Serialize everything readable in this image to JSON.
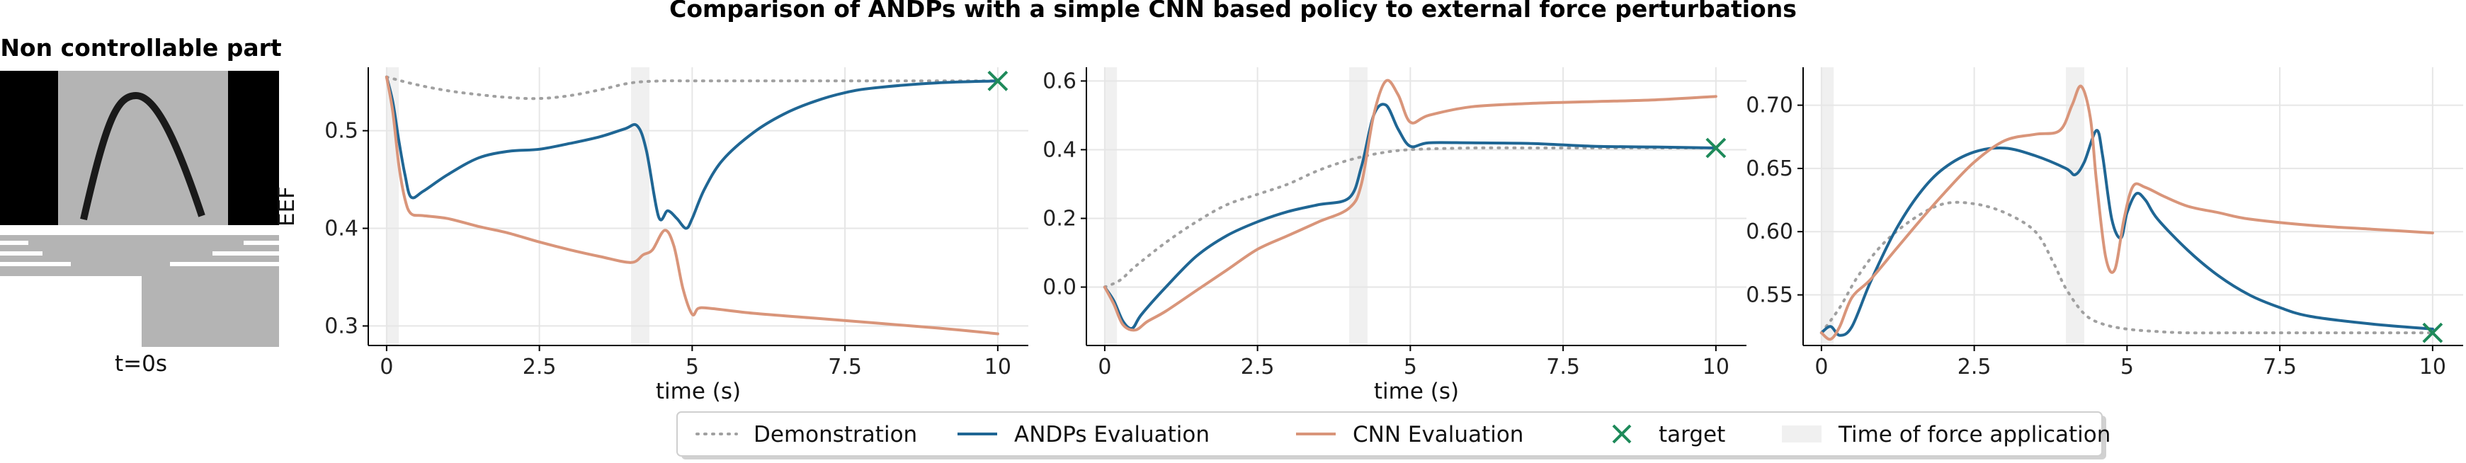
{
  "figure": {
    "title": "Comparison of ANDPs with a simple CNN based policy to external force perturbations",
    "image_panel": {
      "title": "Non controllable part",
      "caption": "t=0s"
    }
  },
  "colors": {
    "demonstration": "#a0a0a0",
    "andps": "#1f6694",
    "cnn": "#d9957a",
    "target": "#1e8a5a",
    "force": "#f0f0f0",
    "grid": "#e6e6e6"
  },
  "legend": {
    "placement": "bottom-center",
    "items": [
      {
        "key": "demonstration",
        "label": "Demonstration"
      },
      {
        "key": "andps",
        "label": "ANDPs Evaluation"
      },
      {
        "key": "cnn",
        "label": "CNN Evaluation"
      },
      {
        "key": "target",
        "label": "target"
      },
      {
        "key": "force",
        "label": "Time of force application"
      }
    ]
  },
  "chart_data": [
    {
      "type": "line",
      "xlabel": "time (s)",
      "ylabel": "EEF",
      "xlim": [
        -0.3,
        10.5
      ],
      "ylim": [
        0.28,
        0.565
      ],
      "xticks": [
        0,
        2.5,
        5,
        7.5,
        10
      ],
      "xtick_labels": [
        "0",
        "2.5",
        "5",
        "7.5",
        "10"
      ],
      "yticks": [
        0.3,
        0.4,
        0.5
      ],
      "ytick_labels": [
        "0.3",
        "0.4",
        "0.5"
      ],
      "grid": true,
      "force_intervals": [
        [
          0,
          0.2
        ],
        [
          4.0,
          4.3
        ]
      ],
      "target": {
        "x": 10,
        "y": 0.551
      },
      "series": [
        {
          "key": "demonstration",
          "style": "dotted",
          "x": [
            0,
            0.5,
            1,
            1.5,
            2,
            2.5,
            3,
            3.5,
            4,
            4.5,
            5,
            6,
            7,
            8,
            9,
            10
          ],
          "y": [
            0.555,
            0.547,
            0.541,
            0.537,
            0.534,
            0.533,
            0.536,
            0.542,
            0.549,
            0.551,
            0.551,
            0.551,
            0.551,
            0.551,
            0.551,
            0.551
          ]
        },
        {
          "key": "andps",
          "style": "solid",
          "x": [
            0,
            0.1,
            0.2,
            0.3,
            0.4,
            0.6,
            1,
            1.5,
            2,
            2.5,
            3,
            3.5,
            3.9,
            4.1,
            4.25,
            4.45,
            4.6,
            4.75,
            4.9,
            5,
            5.2,
            5.5,
            6,
            6.5,
            7,
            7.5,
            8,
            9,
            10
          ],
          "y": [
            0.555,
            0.53,
            0.49,
            0.455,
            0.432,
            0.438,
            0.455,
            0.472,
            0.479,
            0.481,
            0.487,
            0.494,
            0.502,
            0.505,
            0.48,
            0.412,
            0.418,
            0.41,
            0.4,
            0.41,
            0.44,
            0.47,
            0.498,
            0.517,
            0.53,
            0.539,
            0.544,
            0.549,
            0.551
          ]
        },
        {
          "key": "cnn",
          "style": "solid",
          "x": [
            0,
            0.1,
            0.2,
            0.3,
            0.4,
            0.6,
            1,
            1.5,
            2,
            2.5,
            3,
            3.5,
            4,
            4.2,
            4.35,
            4.55,
            4.7,
            4.85,
            5,
            5.1,
            5.3,
            6,
            7,
            8,
            9,
            10
          ],
          "y": [
            0.555,
            0.52,
            0.465,
            0.43,
            0.415,
            0.413,
            0.41,
            0.402,
            0.395,
            0.386,
            0.378,
            0.371,
            0.365,
            0.373,
            0.378,
            0.398,
            0.382,
            0.338,
            0.312,
            0.318,
            0.318,
            0.313,
            0.308,
            0.303,
            0.298,
            0.292
          ]
        }
      ]
    },
    {
      "type": "line",
      "xlabel": "time (s)",
      "ylabel": "",
      "xlim": [
        -0.3,
        10.5
      ],
      "ylim": [
        -0.17,
        0.64
      ],
      "xticks": [
        0,
        2.5,
        5,
        7.5,
        10
      ],
      "xtick_labels": [
        "0",
        "2.5",
        "5",
        "7.5",
        "10"
      ],
      "yticks": [
        0.0,
        0.2,
        0.4,
        0.6
      ],
      "ytick_labels": [
        "0.0",
        "0.2",
        "0.4",
        "0.6"
      ],
      "grid": true,
      "force_intervals": [
        [
          0,
          0.2
        ],
        [
          4.0,
          4.3
        ]
      ],
      "target": {
        "x": 10,
        "y": 0.405
      },
      "series": [
        {
          "key": "demonstration",
          "style": "dotted",
          "x": [
            0,
            0.25,
            0.5,
            1,
            1.5,
            2,
            2.5,
            3,
            3.5,
            4,
            4.5,
            5,
            6,
            7,
            8,
            9,
            10
          ],
          "y": [
            0.0,
            0.02,
            0.06,
            0.13,
            0.19,
            0.24,
            0.27,
            0.3,
            0.34,
            0.37,
            0.39,
            0.4,
            0.405,
            0.405,
            0.405,
            0.405,
            0.405
          ]
        },
        {
          "key": "andps",
          "style": "solid",
          "x": [
            0,
            0.15,
            0.3,
            0.45,
            0.6,
            1,
            1.5,
            2,
            2.5,
            3,
            3.5,
            4,
            4.2,
            4.4,
            4.6,
            4.8,
            5,
            5.3,
            6,
            7,
            8,
            9,
            10
          ],
          "y": [
            0.0,
            -0.04,
            -0.1,
            -0.12,
            -0.08,
            0.0,
            0.09,
            0.15,
            0.19,
            0.22,
            0.24,
            0.26,
            0.35,
            0.5,
            0.53,
            0.46,
            0.41,
            0.42,
            0.42,
            0.418,
            0.41,
            0.408,
            0.405
          ]
        },
        {
          "key": "cnn",
          "style": "solid",
          "x": [
            0,
            0.15,
            0.3,
            0.5,
            0.7,
            1,
            1.5,
            2,
            2.5,
            3,
            3.5,
            4,
            4.2,
            4.4,
            4.6,
            4.8,
            5,
            5.3,
            6,
            7,
            8,
            9,
            10
          ],
          "y": [
            0.0,
            -0.05,
            -0.11,
            -0.125,
            -0.1,
            -0.07,
            -0.01,
            0.05,
            0.11,
            0.15,
            0.19,
            0.23,
            0.3,
            0.5,
            0.6,
            0.56,
            0.48,
            0.5,
            0.525,
            0.535,
            0.54,
            0.545,
            0.555
          ]
        }
      ]
    },
    {
      "type": "line",
      "xlabel": "",
      "ylabel": "",
      "xlim": [
        -0.3,
        10.5
      ],
      "ylim": [
        0.51,
        0.73
      ],
      "xticks": [
        0,
        2.5,
        5,
        7.5,
        10
      ],
      "xtick_labels": [
        "0",
        "2.5",
        "5",
        "7.5",
        "10"
      ],
      "yticks": [
        0.55,
        0.6,
        0.65,
        0.7
      ],
      "ytick_labels": [
        "0.55",
        "0.60",
        "0.65",
        "0.70"
      ],
      "grid": true,
      "force_intervals": [
        [
          0,
          0.2
        ],
        [
          4.0,
          4.3
        ]
      ],
      "target": {
        "x": 10,
        "y": 0.52
      },
      "series": [
        {
          "key": "demonstration",
          "style": "dotted",
          "x": [
            0,
            0.3,
            0.6,
            1,
            1.5,
            2,
            2.5,
            3,
            3.5,
            3.8,
            4,
            4.3,
            4.6,
            5,
            5.5,
            6,
            7,
            8,
            9,
            10
          ],
          "y": [
            0.52,
            0.54,
            0.565,
            0.59,
            0.61,
            0.622,
            0.622,
            0.615,
            0.6,
            0.575,
            0.555,
            0.535,
            0.527,
            0.523,
            0.521,
            0.52,
            0.52,
            0.52,
            0.52,
            0.52
          ]
        },
        {
          "key": "andps",
          "style": "solid",
          "x": [
            0,
            0.15,
            0.3,
            0.5,
            0.8,
            1.2,
            1.6,
            2,
            2.5,
            3,
            3.5,
            4,
            4.15,
            4.3,
            4.5,
            4.6,
            4.75,
            4.9,
            5,
            5.15,
            5.3,
            5.5,
            6,
            6.5,
            7,
            7.5,
            8,
            9,
            10
          ],
          "y": [
            0.52,
            0.525,
            0.518,
            0.525,
            0.56,
            0.6,
            0.63,
            0.65,
            0.663,
            0.666,
            0.66,
            0.65,
            0.645,
            0.655,
            0.68,
            0.66,
            0.61,
            0.595,
            0.615,
            0.63,
            0.625,
            0.61,
            0.585,
            0.565,
            0.55,
            0.54,
            0.533,
            0.527,
            0.523
          ]
        },
        {
          "key": "cnn",
          "style": "solid",
          "x": [
            0,
            0.15,
            0.3,
            0.5,
            0.8,
            1.2,
            1.6,
            2,
            2.5,
            3,
            3.5,
            3.9,
            4.1,
            4.25,
            4.4,
            4.5,
            4.65,
            4.8,
            4.95,
            5.1,
            5.3,
            5.6,
            6,
            6.5,
            7,
            8,
            9,
            10
          ],
          "y": [
            0.52,
            0.515,
            0.525,
            0.548,
            0.562,
            0.585,
            0.608,
            0.63,
            0.655,
            0.672,
            0.677,
            0.68,
            0.7,
            0.715,
            0.69,
            0.64,
            0.58,
            0.57,
            0.61,
            0.636,
            0.635,
            0.628,
            0.62,
            0.615,
            0.61,
            0.605,
            0.602,
            0.599
          ]
        }
      ]
    }
  ]
}
